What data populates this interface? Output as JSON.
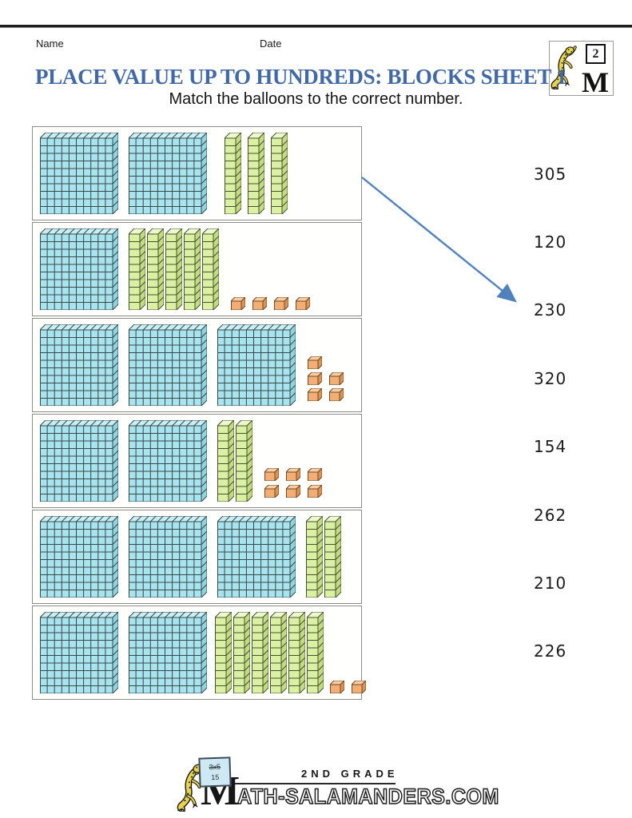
{
  "header": {
    "name_label": "Name",
    "date_label": "Date",
    "title": "PLACE VALUE UP TO HUNDREDS: BLOCKS SHEET 1",
    "instruction": "Match the balloons to the correct number."
  },
  "brand": {
    "grade_badge": "2",
    "brand_letter": "M"
  },
  "worksheet": {
    "rows": [
      {
        "hundreds": 2,
        "tens": 3,
        "ones": 0,
        "ones_rows": [],
        "value": 230
      },
      {
        "hundreds": 1,
        "tens": 5,
        "ones": 4,
        "ones_rows": [
          4
        ],
        "value": 154
      },
      {
        "hundreds": 3,
        "tens": 0,
        "ones": 5,
        "ones_rows": [
          1,
          2,
          2
        ],
        "value": 305
      },
      {
        "hundreds": 2,
        "tens": 2,
        "ones": 6,
        "ones_rows": [
          3,
          3
        ],
        "value": 226
      },
      {
        "hundreds": 3,
        "tens": 2,
        "ones": 0,
        "ones_rows": [],
        "value": 320
      },
      {
        "hundreds": 2,
        "tens": 6,
        "ones": 2,
        "ones_rows": [
          2
        ],
        "value": 262
      }
    ],
    "answer_options": [
      "305",
      "120",
      "230",
      "320",
      "154",
      "262",
      "210",
      "226"
    ],
    "drawn_match": {
      "from_row": 1,
      "to_option": "230"
    }
  },
  "colors": {
    "title_text": "#4169a8",
    "arrow": "#4f81bd",
    "hundred_front": "#a9e3ee",
    "hundred_top": "#c9eef5",
    "hundred_side": "#8ed5e2",
    "hundred_line": "#35494b",
    "ten_front": "#dcf0a4",
    "ten_top": "#edf8cd",
    "ten_side": "#c3dc80",
    "ten_line": "#45522f",
    "one_front": "#f2ae74",
    "one_top": "#f9cda0",
    "one_side": "#de9355",
    "one_line": "#6e4a26",
    "salamander": "#e8d44a"
  },
  "footer": {
    "grade_text": "2ND GRADE",
    "site_letter": "M",
    "site_text": "ATH-SALAMANDERS.COM",
    "board_line1": "3x5",
    "board_line2": "15"
  }
}
